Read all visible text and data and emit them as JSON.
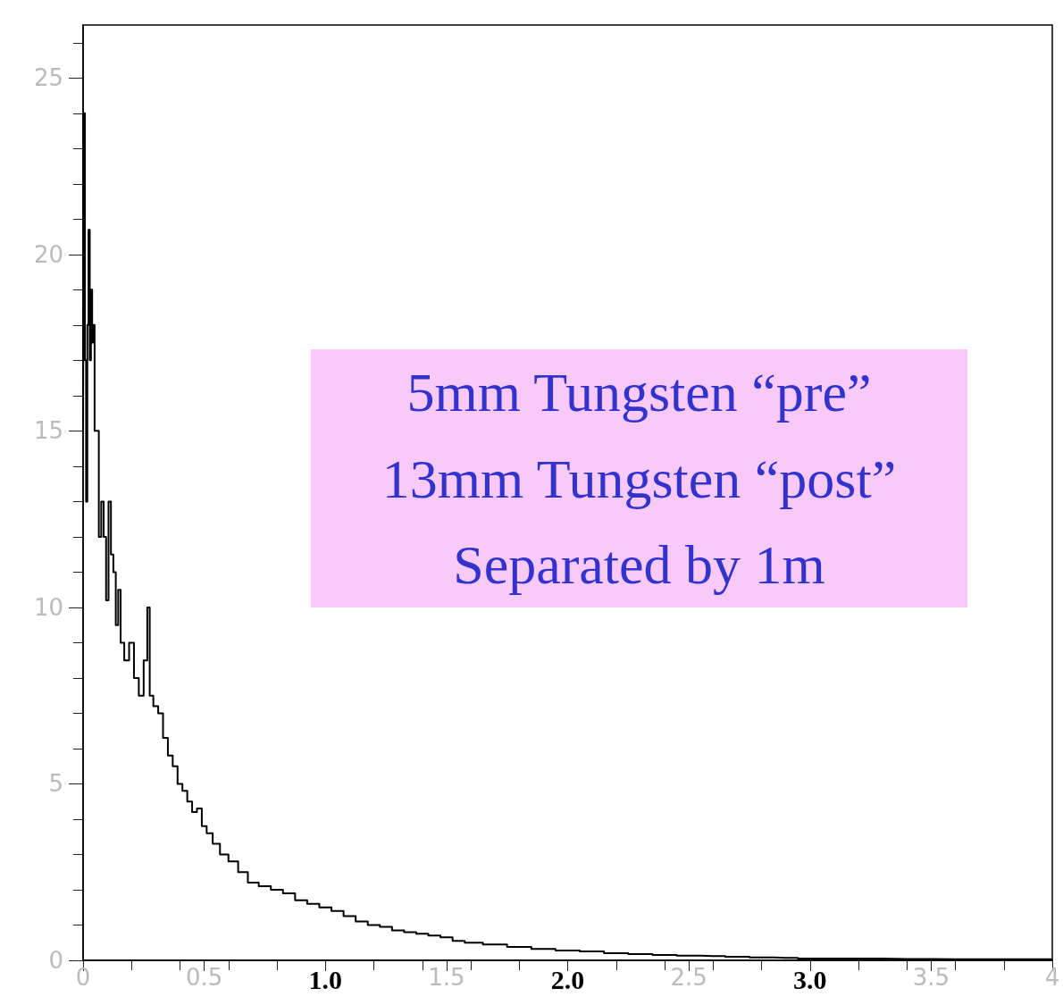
{
  "chart_data": {
    "type": "step",
    "x": [
      0,
      0.005,
      0.01,
      0.015,
      0.02,
      0.025,
      0.03,
      0.035,
      0.04,
      0.045,
      0.05,
      0.06,
      0.07,
      0.08,
      0.09,
      0.1,
      0.11,
      0.12,
      0.13,
      0.14,
      0.15,
      0.16,
      0.18,
      0.2,
      0.22,
      0.24,
      0.26,
      0.27,
      0.28,
      0.3,
      0.32,
      0.34,
      0.36,
      0.38,
      0.4,
      0.42,
      0.44,
      0.46,
      0.48,
      0.5,
      0.52,
      0.55,
      0.58,
      0.62,
      0.66,
      0.7,
      0.75,
      0.8,
      0.85,
      0.9,
      0.95,
      1.0,
      1.05,
      1.1,
      1.15,
      1.2,
      1.25,
      1.3,
      1.35,
      1.4,
      1.45,
      1.5,
      1.55,
      1.6,
      1.7,
      1.8,
      1.9,
      2.0,
      2.1,
      2.2,
      2.3,
      2.4,
      2.5,
      2.6,
      2.7,
      2.8,
      2.9,
      3.0,
      3.2,
      3.4,
      3.6,
      3.8,
      4.0
    ],
    "series": [
      {
        "color": "#000000",
        "values": [
          15,
          24,
          17,
          13,
          18,
          20.7,
          17,
          19,
          17.5,
          18,
          15,
          15,
          12,
          13,
          12,
          10.2,
          13,
          11.5,
          11,
          9.5,
          10.5,
          9,
          8.5,
          9,
          8,
          7.5,
          8.5,
          10,
          7.5,
          7.2,
          7,
          6.3,
          5.8,
          5.5,
          5.0,
          4.8,
          4.5,
          4.2,
          4.3,
          3.8,
          3.6,
          3.3,
          3.0,
          2.8,
          2.5,
          2.2,
          2.1,
          2.0,
          1.9,
          1.7,
          1.6,
          1.5,
          1.4,
          1.25,
          1.1,
          1.0,
          0.95,
          0.85,
          0.8,
          0.75,
          0.7,
          0.65,
          0.55,
          0.5,
          0.45,
          0.38,
          0.32,
          0.28,
          0.25,
          0.2,
          0.18,
          0.15,
          0.13,
          0.12,
          0.1,
          0.08,
          0.07,
          0.05,
          0.05,
          0.04,
          0.03,
          0.03,
          0.03
        ]
      }
    ],
    "xlim": [
      0,
      4
    ],
    "xticks": [
      0,
      0.5,
      {
        "value": 1,
        "label": "1.0"
      },
      1.5,
      {
        "value": 2,
        "label": "2.0"
      },
      2.5,
      {
        "value": 3,
        "label": "3.0"
      },
      3.5,
      4
    ],
    "ylim": [
      0,
      26.5
    ],
    "yticks": [
      0,
      5,
      10,
      15,
      20,
      25
    ],
    "grid": false,
    "marker": "none",
    "line_style": "solid",
    "annotations": [
      "5mm Tungsten “pre”",
      "13mm Tungsten “post”",
      "Separated by 1m"
    ]
  }
}
